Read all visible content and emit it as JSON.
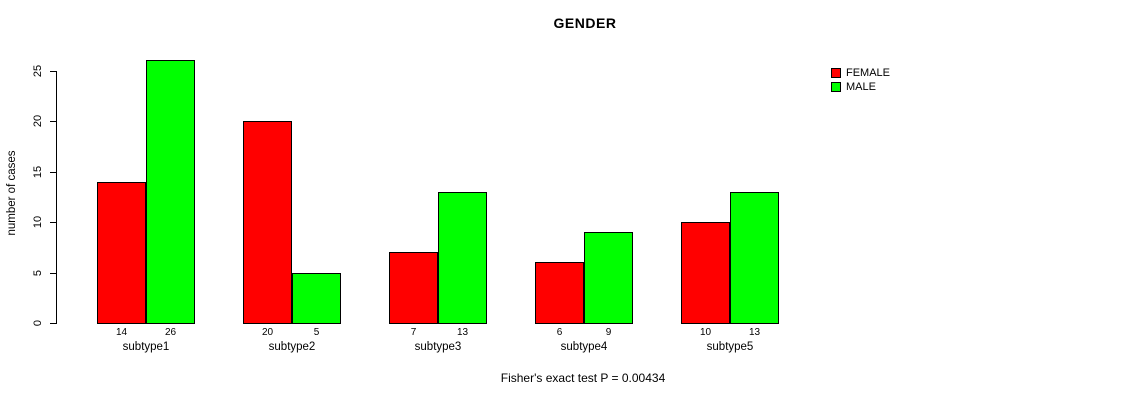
{
  "chart_data": {
    "type": "bar",
    "title": "GENDER",
    "ylabel": "number of cases",
    "xlabel": "",
    "footer": "Fisher's exact test P = 0.00434",
    "categories": [
      "subtype1",
      "subtype2",
      "subtype3",
      "subtype4",
      "subtype5"
    ],
    "series": [
      {
        "name": "FEMALE",
        "color": "#ff0000",
        "values": [
          14,
          20,
          7,
          6,
          10
        ]
      },
      {
        "name": "MALE",
        "color": "#00ff00",
        "values": [
          26,
          5,
          13,
          9,
          13
        ]
      }
    ],
    "yticks": [
      0,
      5,
      10,
      15,
      20,
      25
    ],
    "ylim": [
      0,
      26
    ],
    "grid": false,
    "legend_position": "right",
    "bar_value_labels": true,
    "bar_border_color": "#000000",
    "background_color": "#ffffff"
  }
}
